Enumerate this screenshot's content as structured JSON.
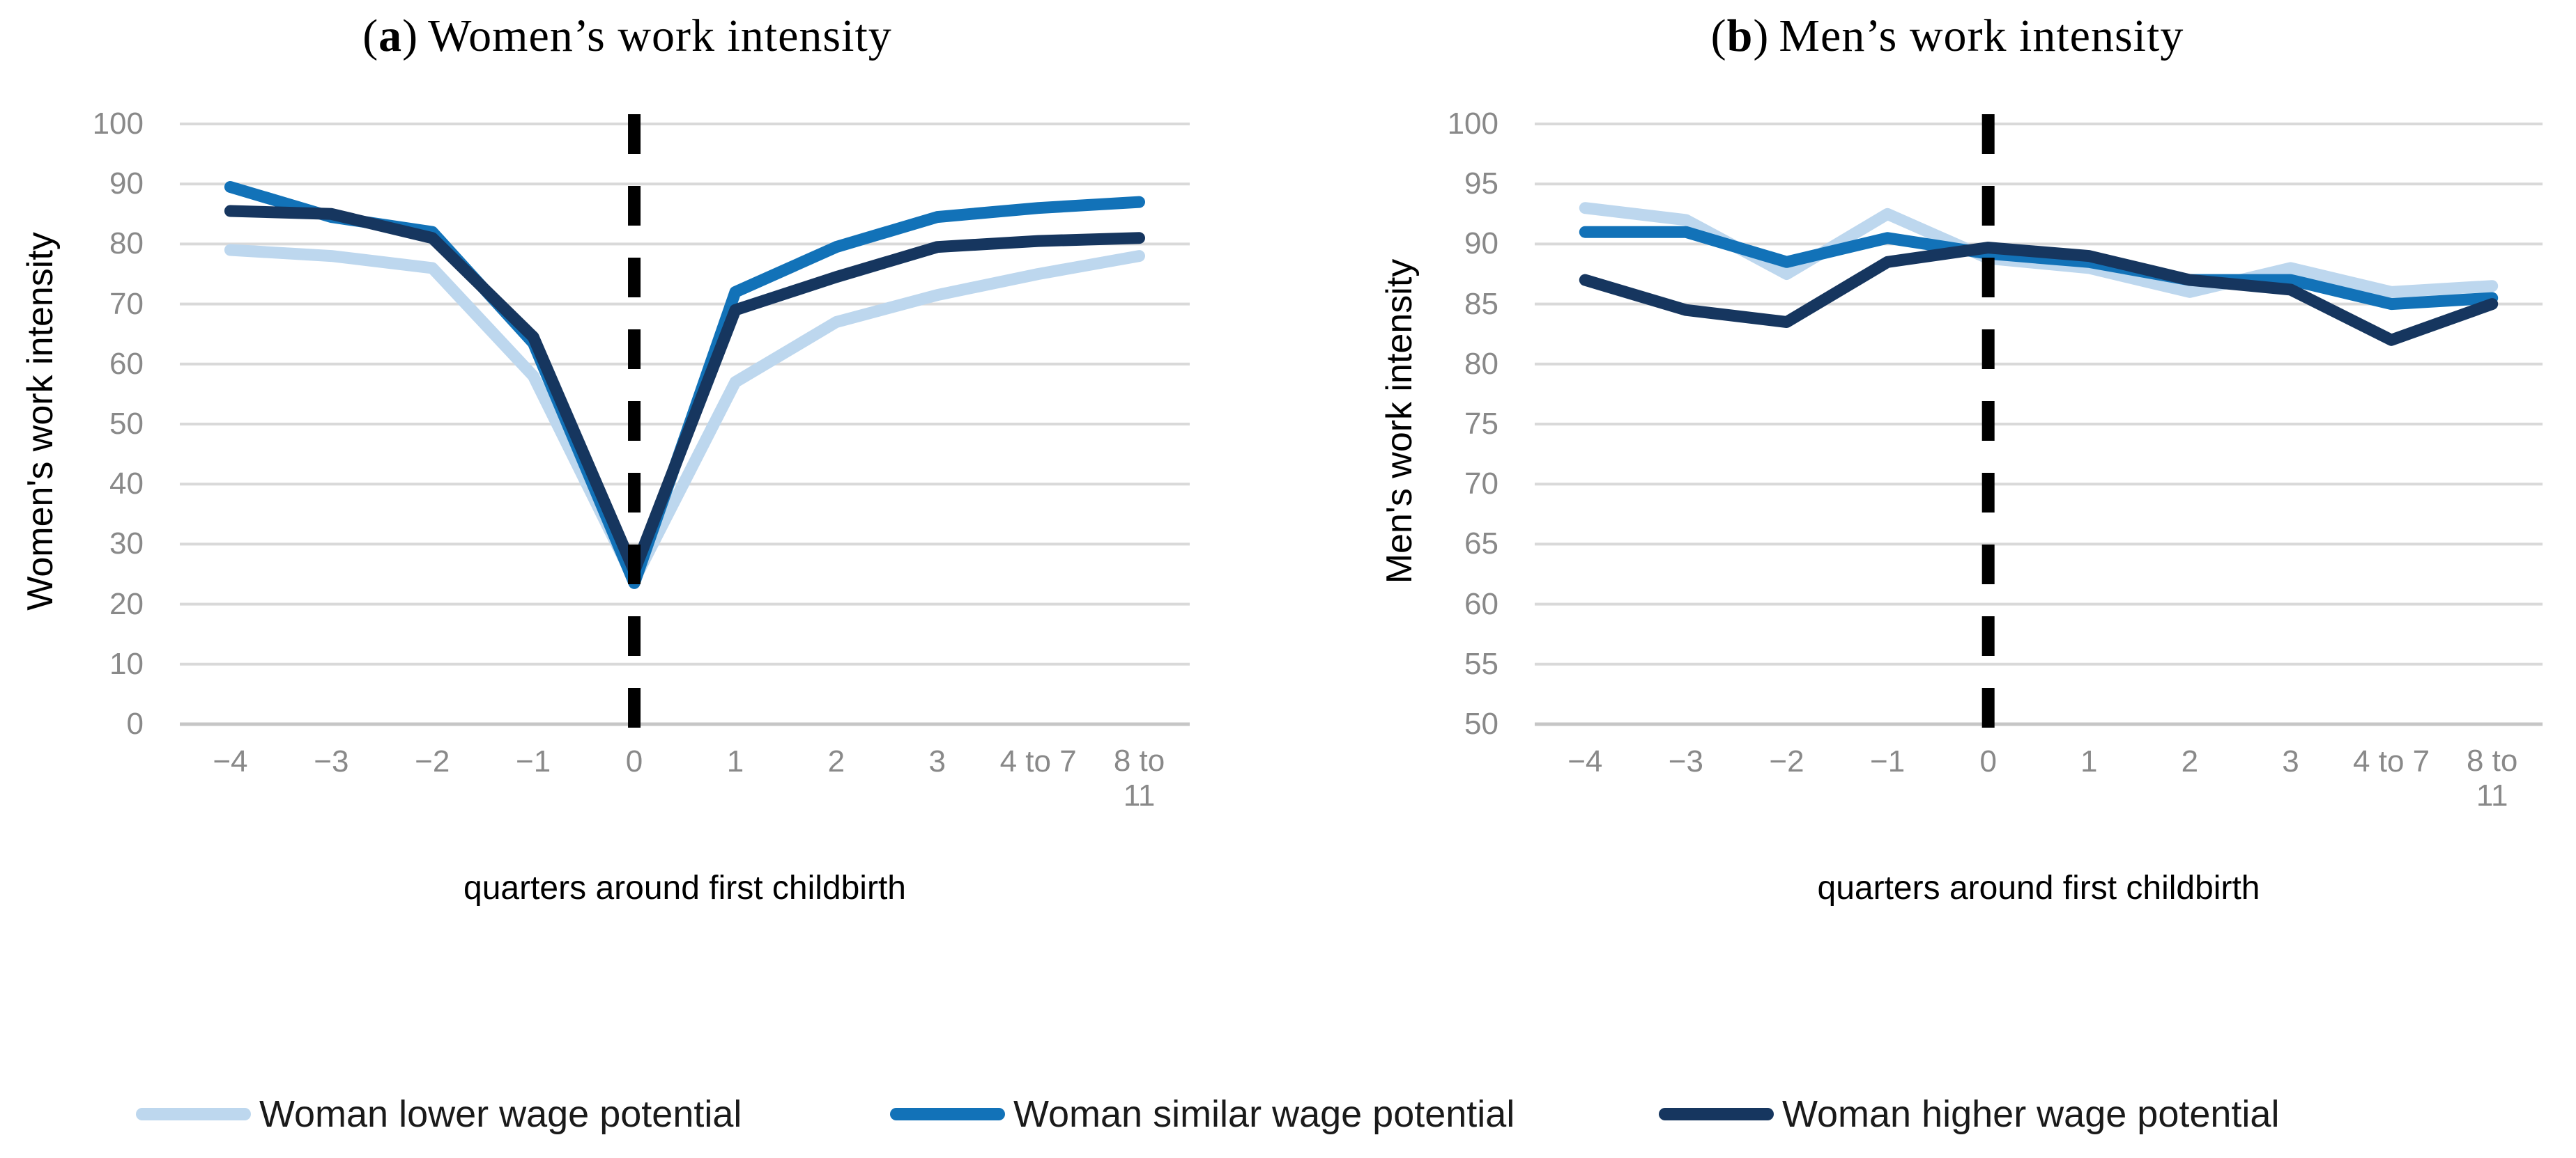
{
  "colors": {
    "gridline": "#D9D9D9",
    "axis_line": "#C6C6C6",
    "tick_label": "#898989",
    "reference_line": "#000000",
    "legend_text": "#1A1A1A"
  },
  "title_parts": {
    "open": "(",
    "close": ")"
  },
  "chart_data": [
    {
      "type": "line",
      "panel_label": "a",
      "title": "Women’s work intensity",
      "xlabel": "quarters around first childbirth",
      "ylabel": "Women's work intensity",
      "ylim": [
        0,
        100
      ],
      "ytick_step": 10,
      "yticks": [
        "0",
        "10",
        "20",
        "30",
        "40",
        "50",
        "60",
        "70",
        "80",
        "90",
        "100"
      ],
      "categories": [
        "−4",
        "−3",
        "−2",
        "−1",
        "0",
        "1",
        "2",
        "3",
        "4 to 7",
        "8 to 11"
      ],
      "reference_line_at": "0",
      "grid": "horizontal",
      "legend_position": "bottom",
      "series": [
        {
          "name": "Woman lower wage potential",
          "color": "#BDD7EE",
          "values": [
            79,
            78,
            76,
            58,
            24,
            57,
            67,
            71.5,
            75,
            78
          ]
        },
        {
          "name": "Woman similar wage potential",
          "color": "#1272B8",
          "values": [
            89.5,
            84.5,
            82,
            63.5,
            23.5,
            72,
            79.5,
            84.5,
            86,
            87
          ]
        },
        {
          "name": "Woman higher wage potential",
          "color": "#16365F",
          "values": [
            85.5,
            85,
            81,
            64.5,
            25.5,
            69,
            74.5,
            79.5,
            80.5,
            81
          ]
        }
      ]
    },
    {
      "type": "line",
      "panel_label": "b",
      "title": "Men’s work intensity",
      "xlabel": "quarters around first childbirth",
      "ylabel": "Men's work intensity",
      "ylim": [
        50,
        100
      ],
      "ytick_step": 5,
      "yticks": [
        "50",
        "55",
        "60",
        "65",
        "70",
        "75",
        "80",
        "85",
        "90",
        "95",
        "100"
      ],
      "categories": [
        "−4",
        "−3",
        "−2",
        "−1",
        "0",
        "1",
        "2",
        "3",
        "4 to 7",
        "8 to 11"
      ],
      "reference_line_at": "0",
      "grid": "horizontal",
      "legend_position": "bottom",
      "series": [
        {
          "name": "Woman lower wage potential",
          "color": "#BDD7EE",
          "values": [
            93,
            92,
            87.5,
            92.5,
            88.8,
            88,
            86,
            88,
            86,
            86.5
          ]
        },
        {
          "name": "Woman similar wage potential",
          "color": "#1272B8",
          "values": [
            91,
            91,
            88.5,
            90.5,
            89.2,
            88.5,
            87,
            87,
            85,
            85.5
          ]
        },
        {
          "name": "Woman higher wage potential",
          "color": "#16365F",
          "values": [
            87,
            84.5,
            83.5,
            88.5,
            89.7,
            89,
            87,
            86.2,
            82,
            85
          ]
        }
      ]
    }
  ]
}
